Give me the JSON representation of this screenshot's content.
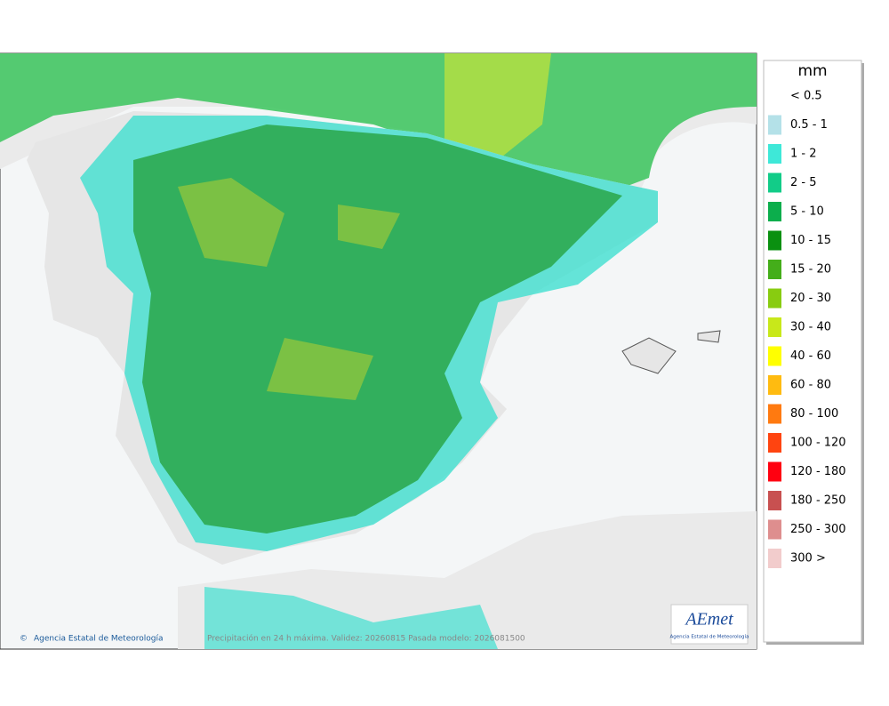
{
  "legend": {
    "title": "mm",
    "items": [
      {
        "label": "< 0.5",
        "color": "#ffffff"
      },
      {
        "label": "0.5 - 1",
        "color": "#b4e1e8"
      },
      {
        "label": "1 - 2",
        "color": "#3ee8d8"
      },
      {
        "label": "2 - 5",
        "color": "#12cc88"
      },
      {
        "label": "5 - 10",
        "color": "#0cae4c"
      },
      {
        "label": "10 - 15",
        "color": "#0a9010"
      },
      {
        "label": "15 - 20",
        "color": "#44ae1a"
      },
      {
        "label": "20 - 30",
        "color": "#88cc10"
      },
      {
        "label": "30 - 40",
        "color": "#c8e81a"
      },
      {
        "label": "40 - 60",
        "color": "#ffff00"
      },
      {
        "label": "60 - 80",
        "color": "#ffbb10"
      },
      {
        "label": "80 - 100",
        "color": "#ff7a10"
      },
      {
        "label": "100 - 120",
        "color": "#ff4410"
      },
      {
        "label": "120 - 180",
        "color": "#ff0010"
      },
      {
        "label": "180 - 250",
        "color": "#c85050"
      },
      {
        "label": "250 - 300",
        "color": "#de8e8e"
      },
      {
        "label": "300 >",
        "color": "#f2cccc"
      }
    ]
  },
  "footer": {
    "credit": "Agencia Estatal de Meteorología",
    "caption": "Precipitación en 24 h máxima. Validez: 20260815 Pasada modelo: 2026081500"
  },
  "logo": {
    "name": "AEmet",
    "subtitle": "Agencia Estatal de Meteorología"
  }
}
